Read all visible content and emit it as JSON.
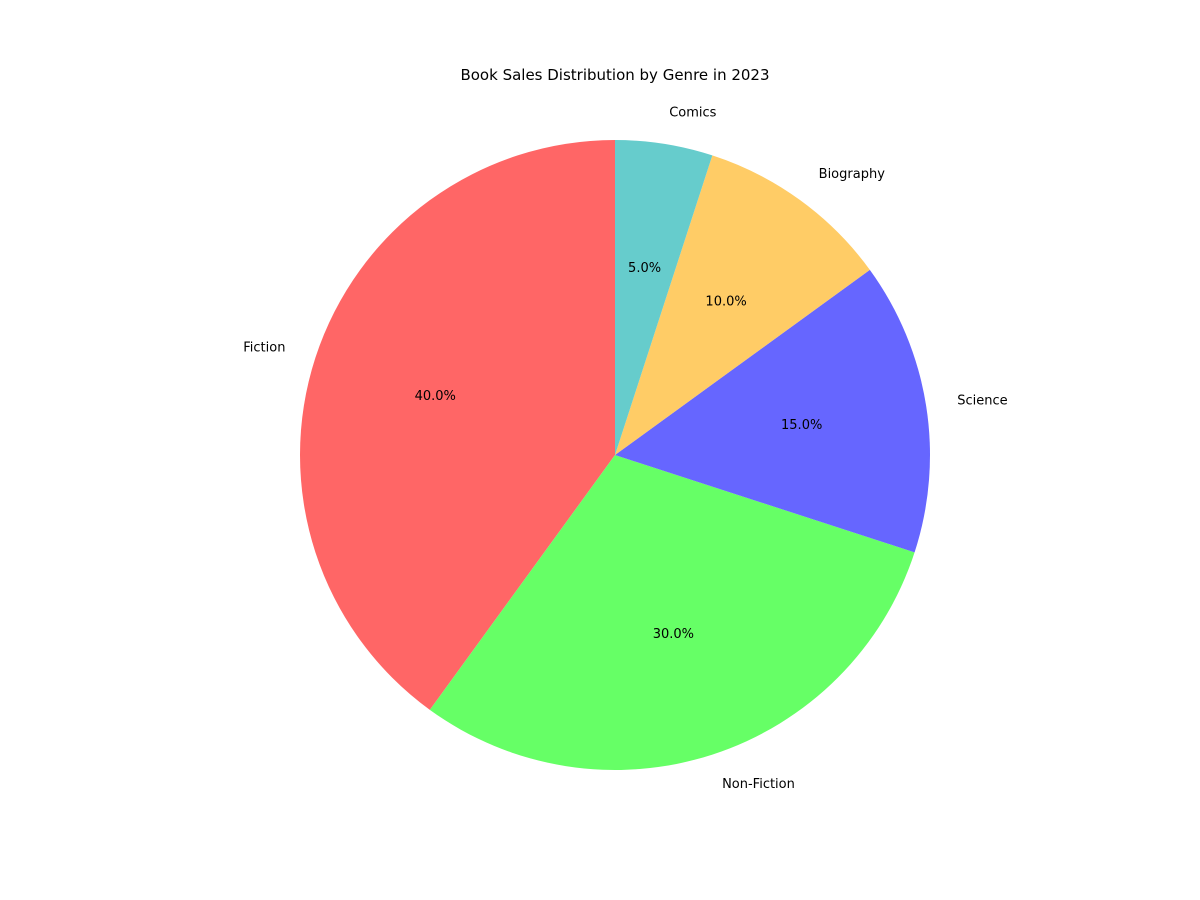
{
  "chart_data": {
    "type": "pie",
    "title": "Book Sales Distribution by Genre in 2023",
    "categories": [
      "Fiction",
      "Non-Fiction",
      "Science",
      "Biography",
      "Comics"
    ],
    "values": [
      40,
      30,
      15,
      10,
      5
    ],
    "percent_labels": [
      "40.0%",
      "30.0%",
      "15.0%",
      "10.0%",
      "5.0%"
    ],
    "colors": [
      "#ff6666",
      "#66ff66",
      "#6666ff",
      "#ffcc66",
      "#66cccc"
    ],
    "start_angle_deg": 90,
    "direction": "counterclockwise",
    "legend": "none"
  }
}
